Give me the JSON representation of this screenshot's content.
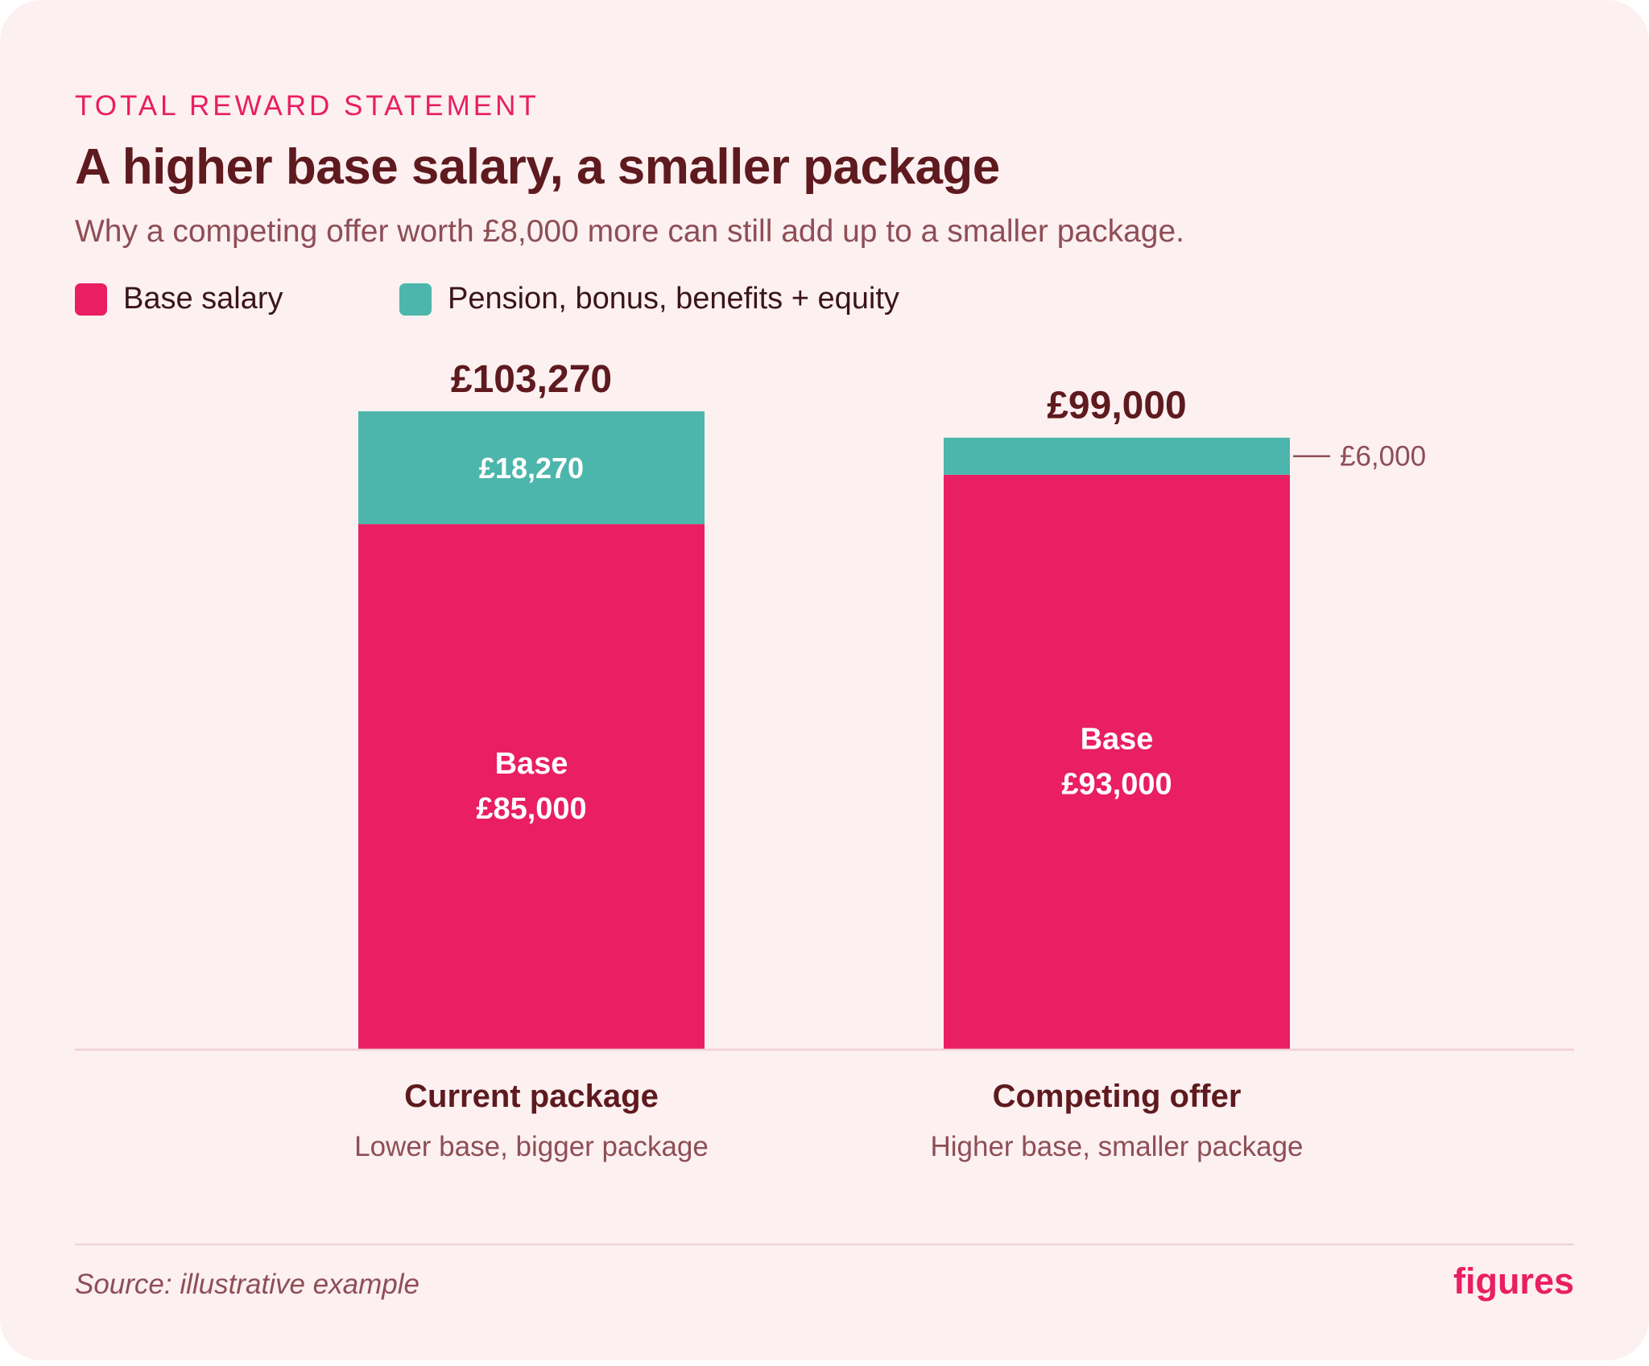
{
  "header": {
    "eyebrow": "TOTAL REWARD STATEMENT",
    "title": "A higher base salary, a smaller package",
    "subtitle": "Why a competing offer worth £8,000 more can still add up to a smaller package."
  },
  "colors": {
    "base": "#e91e63",
    "extras": "#4db6ac",
    "ink": "#5e1a1e",
    "muted": "#8e4e55",
    "baseline": "#f1cfd4"
  },
  "chart_data": {
    "type": "bar",
    "stacked": true,
    "title": "A higher base salary, a smaller package",
    "categories": [
      "Current package",
      "Competing offer"
    ],
    "category_notes": [
      "Lower base, bigger package",
      "Higher base, smaller package"
    ],
    "series": [
      {
        "name": "Base salary",
        "values": [
          85000,
          93000
        ],
        "labels": [
          "£85,000",
          "£93,000"
        ],
        "inner_caption": "Base"
      },
      {
        "name": "Pension, bonus, benefits + equity",
        "values": [
          18270,
          6000
        ],
        "labels": [
          "£18,270",
          "£6,000"
        ]
      }
    ],
    "totals": [
      103270,
      99000
    ],
    "total_labels": [
      "£103,270",
      "£99,000"
    ],
    "ylim": [
      0,
      103270
    ],
    "legend": "top-left",
    "grid": false
  },
  "footer": {
    "source": "Source: illustrative example",
    "brand": "figures"
  }
}
